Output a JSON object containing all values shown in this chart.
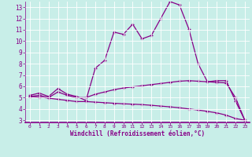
{
  "xlabel": "Windchill (Refroidissement éolien,°C)",
  "bg_color": "#c8eee8",
  "line_color": "#880088",
  "xlim": [
    -0.5,
    23.5
  ],
  "ylim": [
    2.8,
    13.5
  ],
  "xticks": [
    0,
    1,
    2,
    3,
    4,
    5,
    6,
    7,
    8,
    9,
    10,
    11,
    12,
    13,
    14,
    15,
    16,
    17,
    18,
    19,
    20,
    21,
    22,
    23
  ],
  "yticks": [
    3,
    4,
    5,
    6,
    7,
    8,
    9,
    10,
    11,
    12,
    13
  ],
  "curve1_y": [
    5.2,
    5.4,
    5.1,
    5.8,
    5.3,
    5.1,
    4.75,
    7.6,
    8.3,
    10.8,
    10.6,
    11.5,
    10.2,
    10.5,
    12.0,
    13.5,
    13.2,
    11.1,
    8.0,
    6.4,
    6.5,
    6.5,
    4.7,
    3.0
  ],
  "curve2_y": [
    5.1,
    5.2,
    5.0,
    5.5,
    5.2,
    5.0,
    5.0,
    5.3,
    5.5,
    5.7,
    5.85,
    5.95,
    6.05,
    6.15,
    6.25,
    6.35,
    6.45,
    6.5,
    6.45,
    6.4,
    6.35,
    6.3,
    5.0,
    3.0
  ],
  "curve3_y": [
    5.1,
    5.05,
    4.95,
    4.85,
    4.75,
    4.65,
    4.65,
    4.6,
    4.55,
    4.5,
    4.45,
    4.42,
    4.38,
    4.32,
    4.25,
    4.18,
    4.1,
    4.0,
    3.9,
    3.78,
    3.65,
    3.45,
    3.15,
    3.0
  ]
}
